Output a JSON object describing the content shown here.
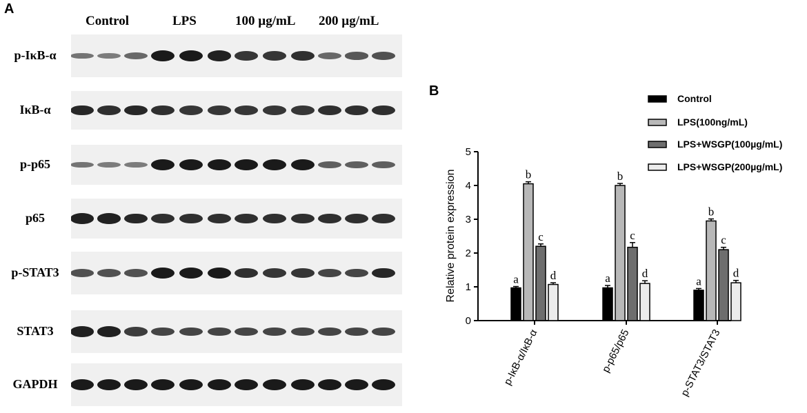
{
  "panel_a": {
    "letter": "A",
    "groups": [
      "Control",
      "LPS",
      "100 µg/mL",
      "200 µg/mL"
    ],
    "rows": [
      {
        "label": "p-IκB-α",
        "intensity": [
          0.35,
          0.3,
          0.45,
          1.0,
          1.0,
          0.95,
          0.8,
          0.8,
          0.85,
          0.45,
          0.55,
          0.6
        ]
      },
      {
        "label": "IκB-α",
        "intensity": [
          0.9,
          0.85,
          0.9,
          0.85,
          0.8,
          0.8,
          0.8,
          0.8,
          0.8,
          0.85,
          0.85,
          0.85
        ]
      },
      {
        "label": "p-p65",
        "intensity": [
          0.35,
          0.3,
          0.3,
          1.0,
          1.0,
          1.0,
          1.0,
          1.0,
          1.0,
          0.5,
          0.5,
          0.5
        ]
      },
      {
        "label": "p65",
        "intensity": [
          0.95,
          0.95,
          0.9,
          0.85,
          0.85,
          0.85,
          0.85,
          0.85,
          0.85,
          0.85,
          0.85,
          0.85
        ]
      },
      {
        "label": "p-STAT3",
        "intensity": [
          0.6,
          0.6,
          0.6,
          1.0,
          1.0,
          1.0,
          0.85,
          0.8,
          0.8,
          0.7,
          0.7,
          0.9
        ]
      },
      {
        "label": "STAT3",
        "intensity": [
          0.95,
          0.95,
          0.75,
          0.7,
          0.7,
          0.7,
          0.7,
          0.7,
          0.7,
          0.7,
          0.7,
          0.7
        ]
      },
      {
        "label": "GAPDH",
        "intensity": [
          1.0,
          1.0,
          1.0,
          1.0,
          1.0,
          1.0,
          1.0,
          1.0,
          1.0,
          1.0,
          1.0,
          1.0
        ]
      }
    ]
  },
  "chart_data": {
    "panel_letter": "B",
    "type": "bar",
    "categories": [
      "p-IκB-α/IκB-α",
      "p-p65/p65",
      "p-STAT3/STAT3"
    ],
    "series": [
      {
        "name": "Control",
        "values": [
          0.97,
          0.97,
          0.9
        ],
        "errors": [
          0.04,
          0.07,
          0.05
        ],
        "letters": [
          "a",
          "a",
          "a"
        ],
        "fill": "#000000"
      },
      {
        "name": "LPS(100ng/mL)",
        "values": [
          4.05,
          4.0,
          2.95
        ],
        "errors": [
          0.06,
          0.06,
          0.06
        ],
        "letters": [
          "b",
          "b",
          "b"
        ],
        "fill": "#b8b8b8"
      },
      {
        "name": "LPS+WSGP(100µg/mL)",
        "values": [
          2.2,
          2.17,
          2.1
        ],
        "errors": [
          0.07,
          0.14,
          0.07
        ],
        "letters": [
          "c",
          "c",
          "c"
        ],
        "fill": "#6e6e6e"
      },
      {
        "name": "LPS+WSGP(200µg/mL)",
        "values": [
          1.07,
          1.1,
          1.12
        ],
        "errors": [
          0.05,
          0.08,
          0.07
        ],
        "letters": [
          "d",
          "d",
          "d"
        ],
        "fill": "#ececec"
      }
    ],
    "ylabel": "Relative protein expression",
    "xlabel": "",
    "ylim": [
      0,
      5
    ],
    "yticks": [
      0,
      1,
      2,
      3,
      4,
      5
    ],
    "legend_position": "top-right",
    "grid": false
  }
}
